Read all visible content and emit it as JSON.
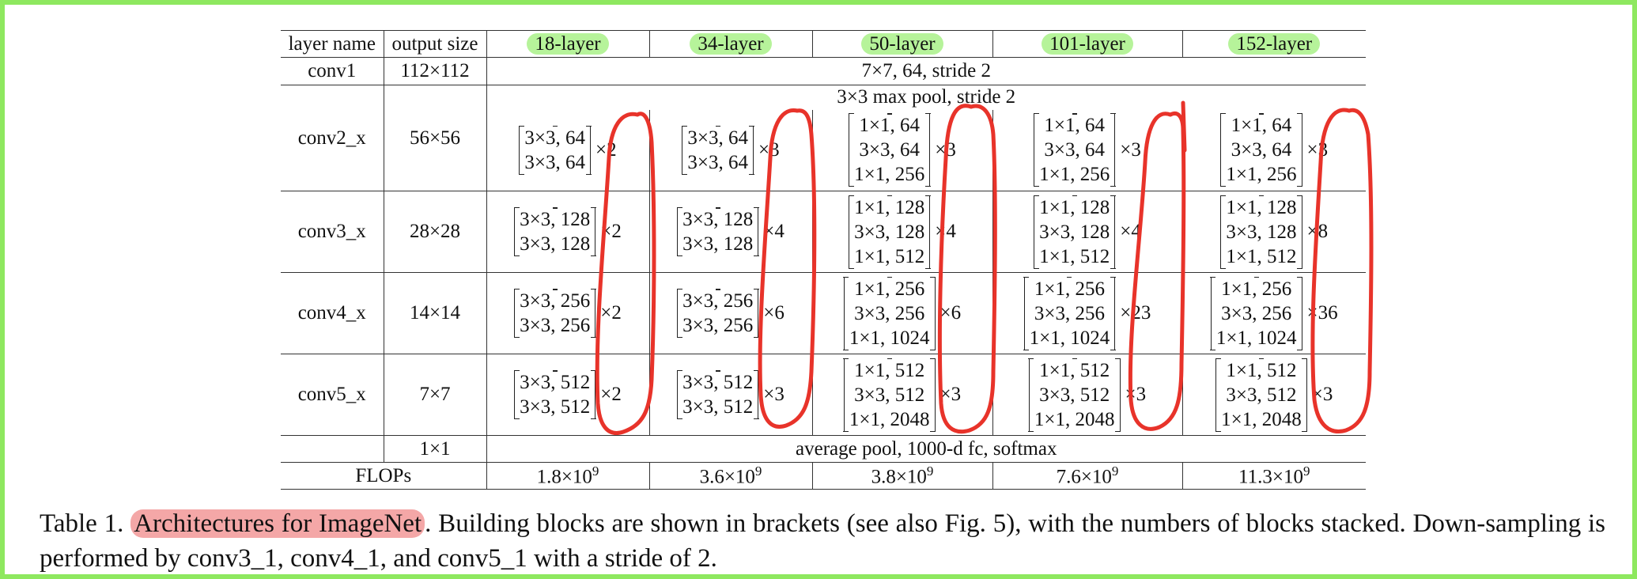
{
  "header": {
    "layer_name": "layer name",
    "output_size": "output size",
    "depths": [
      "18-layer",
      "34-layer",
      "50-layer",
      "101-layer",
      "152-layer"
    ]
  },
  "conv1": {
    "name": "conv1",
    "size": "112×112",
    "spec": "7×7, 64, stride 2"
  },
  "conv2": {
    "name": "conv2_x",
    "size": "56×56",
    "pool": "3×3 max pool, stride 2",
    "blocks": [
      {
        "lines": [
          "3×3, 64",
          "3×3, 64"
        ],
        "mult": "×2"
      },
      {
        "lines": [
          "3×3, 64",
          "3×3, 64"
        ],
        "mult": "×3"
      },
      {
        "lines": [
          "1×1, 64",
          "3×3, 64",
          "1×1, 256"
        ],
        "mult": "×3"
      },
      {
        "lines": [
          "1×1, 64",
          "3×3, 64",
          "1×1, 256"
        ],
        "mult": "×3"
      },
      {
        "lines": [
          "1×1, 64",
          "3×3, 64",
          "1×1, 256"
        ],
        "mult": "×3"
      }
    ]
  },
  "conv3": {
    "name": "conv3_x",
    "size": "28×28",
    "blocks": [
      {
        "lines": [
          "3×3, 128",
          "3×3, 128"
        ],
        "mult": "×2"
      },
      {
        "lines": [
          "3×3, 128",
          "3×3, 128"
        ],
        "mult": "×4"
      },
      {
        "lines": [
          "1×1, 128",
          "3×3, 128",
          "1×1, 512"
        ],
        "mult": "×4"
      },
      {
        "lines": [
          "1×1, 128",
          "3×3, 128",
          "1×1, 512"
        ],
        "mult": "×4"
      },
      {
        "lines": [
          "1×1, 128",
          "3×3, 128",
          "1×1, 512"
        ],
        "mult": "×8"
      }
    ]
  },
  "conv4": {
    "name": "conv4_x",
    "size": "14×14",
    "blocks": [
      {
        "lines": [
          "3×3, 256",
          "3×3, 256"
        ],
        "mult": "×2"
      },
      {
        "lines": [
          "3×3, 256",
          "3×3, 256"
        ],
        "mult": "×6"
      },
      {
        "lines": [
          "1×1, 256",
          "3×3, 256",
          "1×1, 1024"
        ],
        "mult": "×6"
      },
      {
        "lines": [
          "1×1, 256",
          "3×3, 256",
          "1×1, 1024"
        ],
        "mult": "×23"
      },
      {
        "lines": [
          "1×1, 256",
          "3×3, 256",
          "1×1, 1024"
        ],
        "mult": "×36"
      }
    ]
  },
  "conv5": {
    "name": "conv5_x",
    "size": "7×7",
    "blocks": [
      {
        "lines": [
          "3×3, 512",
          "3×3, 512"
        ],
        "mult": "×2"
      },
      {
        "lines": [
          "3×3, 512",
          "3×3, 512"
        ],
        "mult": "×3"
      },
      {
        "lines": [
          "1×1, 512",
          "3×3, 512",
          "1×1, 2048"
        ],
        "mult": "×3"
      },
      {
        "lines": [
          "1×1, 512",
          "3×3, 512",
          "1×1, 2048"
        ],
        "mult": "×3"
      },
      {
        "lines": [
          "1×1, 512",
          "3×3, 512",
          "1×1, 2048"
        ],
        "mult": "×3"
      }
    ]
  },
  "final": {
    "size": "1×1",
    "spec": "average pool, 1000-d fc, softmax"
  },
  "flops": {
    "label": "FLOPs",
    "values": [
      {
        "mantissa": "1.8×10",
        "exp": "9"
      },
      {
        "mantissa": "3.6×10",
        "exp": "9"
      },
      {
        "mantissa": "3.8×10",
        "exp": "9"
      },
      {
        "mantissa": "7.6×10",
        "exp": "9"
      },
      {
        "mantissa": "11.3×10",
        "exp": "9"
      }
    ]
  },
  "caption": {
    "prefix": "Table 1. ",
    "highlight": "Architectures for ImageNet",
    "rest": ". Building blocks are shown in brackets (see also Fig. 5), with the numbers of blocks stacked. Down-sampling is performed by conv3_1, conv4_1, and conv5_1 with a stride of 2."
  },
  "colors": {
    "frame": "#8ee85f",
    "green_highlight": "#b6f39a",
    "red_highlight": "#f4a7a7",
    "pen": "#e8332a"
  }
}
